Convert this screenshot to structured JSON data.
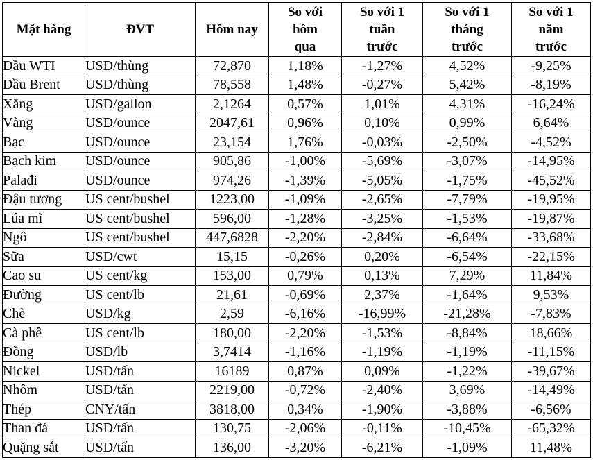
{
  "colors": {
    "border": "#000000",
    "text": "#000000",
    "background": "#ffffff"
  },
  "table": {
    "columns": [
      {
        "key": "name",
        "label": "Mặt hàng"
      },
      {
        "key": "unit",
        "label": "ĐVT"
      },
      {
        "key": "today",
        "label": "Hôm nay"
      },
      {
        "key": "vs_yesterday",
        "label": "So với\nhôm\nqua"
      },
      {
        "key": "vs_week",
        "label": "So với 1\ntuần\ntrước"
      },
      {
        "key": "vs_month",
        "label": "So với 1\ntháng\ntrước"
      },
      {
        "key": "vs_year",
        "label": "So với 1\nnăm\ntrước"
      }
    ],
    "rows": [
      [
        "Dầu WTI",
        "USD/thùng",
        "72,870",
        "1,18%",
        "-1,27%",
        "4,52%",
        "-9,25%"
      ],
      [
        "Dầu Brent",
        "USD/thùng",
        "78,558",
        "1,48%",
        "-0,27%",
        "5,42%",
        "-8,19%"
      ],
      [
        "Xăng",
        "USD/gallon",
        "2,1264",
        "0,57%",
        "1,01%",
        "4,31%",
        "-16,24%"
      ],
      [
        "Vàng",
        "USD/ounce",
        "2047,61",
        "0,96%",
        "0,10%",
        "0,99%",
        "6,64%"
      ],
      [
        "Bạc",
        "USD/ounce",
        "23,154",
        "1,76%",
        "-0,03%",
        "-2,50%",
        "-4,52%"
      ],
      [
        "Bạch kim",
        "USD/ounce",
        "905,86",
        "-1,00%",
        "-5,69%",
        "-3,07%",
        "-14,95%"
      ],
      [
        "Palađi",
        "USD/ounce",
        "974,26",
        "-1,39%",
        "-5,05%",
        "-1,75%",
        "-45,52%"
      ],
      [
        "Đậu tương",
        "US cent/bushel",
        "1223,00",
        "-1,09%",
        "-2,65%",
        "-7,79%",
        "-19,95%"
      ],
      [
        "Lúa mì",
        "US cent/bushel",
        "596,00",
        "-1,28%",
        "-3,25%",
        "-1,53%",
        "-19,87%"
      ],
      [
        "Ngô",
        "US cent/bushel",
        "447,6828",
        "-2,20%",
        "-2,84%",
        "-6,64%",
        "-33,68%"
      ],
      [
        "Sữa",
        "USD/cwt",
        "15,15",
        "-0,26%",
        "0,20%",
        "-6,54%",
        "-22,15%"
      ],
      [
        "Cao su",
        "US cent/kg",
        "153,00",
        "0,79%",
        "0,13%",
        "7,29%",
        "11,84%"
      ],
      [
        "Đường",
        "US cent/lb",
        "21,61",
        "-0,69%",
        "2,37%",
        "-1,64%",
        "9,53%"
      ],
      [
        "Chè",
        "USD/kg",
        "2,59",
        "-6,16%",
        "-16,99%",
        "-21,28%",
        "-7,83%"
      ],
      [
        "Cà phê",
        "US cent/lb",
        "180,00",
        "-2,20%",
        "-1,53%",
        "-8,84%",
        "18,66%"
      ],
      [
        "Đồng",
        "USD/lb",
        "3,7414",
        "-1,16%",
        "-1,19%",
        "-1,19%",
        "-11,15%"
      ],
      [
        "Nickel",
        "USD/tấn",
        "16189",
        "0,87%",
        "0,09%",
        "-1,22%",
        "-39,67%"
      ],
      [
        "Nhôm",
        "USD/tấn",
        "2219,00",
        "-0,72%",
        "-2,40%",
        "3,69%",
        "-14,49%"
      ],
      [
        "Thép",
        "CNY/tấn",
        "3818,00",
        "0,34%",
        "-1,90%",
        "-3,88%",
        "-6,56%"
      ],
      [
        "Than đá",
        "USD/tấn",
        "130,75",
        "-2,06%",
        "-0,11%",
        "-10,45%",
        "-65,32%"
      ],
      [
        "Quặng sắt",
        "USD/tấn",
        "136,00",
        "-3,20%",
        "-6,21%",
        "-1,09%",
        "11,48%"
      ]
    ]
  }
}
